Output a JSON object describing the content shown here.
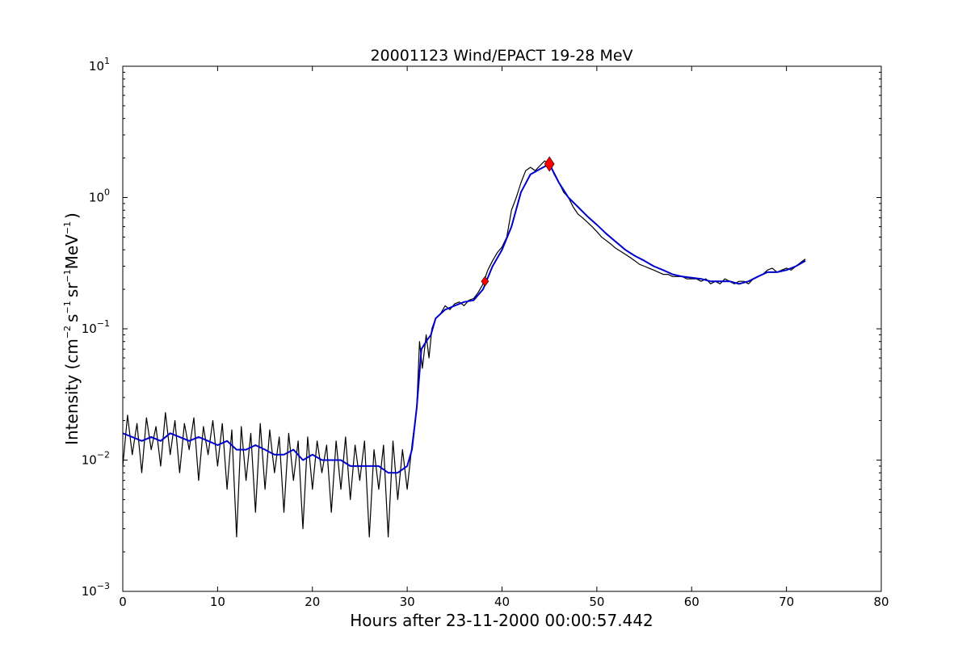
{
  "chart_data": {
    "type": "line",
    "title": "20001123 Wind/EPACT 19-28 MeV",
    "xlabel": "Hours after 23-11-2000 00:00:57.442",
    "ylabel": {
      "prefix": "Intensity (cm",
      "exp1": "−2",
      "part2": "s",
      "exp2": "−1",
      "part3": "sr",
      "exp3": "−1",
      "part4": "MeV",
      "exp4": "−1",
      "suffix": ")"
    },
    "xlim": [
      0,
      80
    ],
    "ylim": [
      0.001,
      10
    ],
    "yscale": "log",
    "grid": false,
    "x_ticks": [
      {
        "value": 0,
        "label": "0"
      },
      {
        "value": 10,
        "label": "10"
      },
      {
        "value": 20,
        "label": "20"
      },
      {
        "value": 30,
        "label": "30"
      },
      {
        "value": 40,
        "label": "40"
      },
      {
        "value": 50,
        "label": "50"
      },
      {
        "value": 60,
        "label": "60"
      },
      {
        "value": 70,
        "label": "70"
      },
      {
        "value": 80,
        "label": "80"
      }
    ],
    "y_ticks": [
      {
        "value": 0.001,
        "base": "10",
        "exp": "−3"
      },
      {
        "value": 0.01,
        "base": "10",
        "exp": "−2"
      },
      {
        "value": 0.1,
        "base": "10",
        "exp": "−1"
      },
      {
        "value": 1,
        "base": "10",
        "exp": "0"
      },
      {
        "value": 10,
        "base": "10",
        "exp": "1"
      }
    ],
    "series": [
      {
        "color": "#000000",
        "x": [
          0.0,
          0.5,
          1.0,
          1.5,
          2.0,
          2.5,
          3.0,
          3.5,
          4.0,
          4.5,
          5.0,
          5.5,
          6.0,
          6.5,
          7.0,
          7.5,
          8.0,
          8.5,
          9.0,
          9.5,
          10.0,
          10.5,
          11.0,
          11.5,
          12.0,
          12.5,
          13.0,
          13.5,
          14.0,
          14.5,
          15.0,
          15.5,
          16.0,
          16.5,
          17.0,
          17.5,
          18.0,
          18.5,
          19.0,
          19.5,
          20.0,
          20.5,
          21.0,
          21.5,
          22.0,
          22.5,
          23.0,
          23.5,
          24.0,
          24.5,
          25.0,
          25.5,
          26.0,
          26.5,
          27.0,
          27.5,
          28.0,
          28.5,
          29.0,
          29.5,
          30.0,
          30.5,
          31.0,
          31.3,
          31.6,
          32.0,
          32.3,
          32.6,
          33.0,
          33.5,
          34.0,
          34.5,
          35.0,
          35.5,
          36.0,
          36.5,
          37.0,
          37.5,
          38.0,
          38.5,
          39.0,
          39.5,
          40.0,
          40.5,
          41.0,
          41.5,
          42.0,
          42.5,
          43.0,
          43.5,
          44.0,
          44.5,
          45.0,
          45.5,
          46.0,
          46.5,
          47.0,
          47.5,
          48.0,
          48.5,
          49.0,
          49.5,
          50.0,
          50.5,
          51.0,
          51.5,
          52.0,
          52.5,
          53.0,
          53.5,
          54.0,
          54.5,
          55.0,
          55.5,
          56.0,
          56.5,
          57.0,
          57.5,
          58.0,
          58.5,
          59.0,
          59.5,
          60.0,
          60.5,
          61.0,
          61.5,
          62.0,
          62.5,
          63.0,
          63.5,
          64.0,
          64.5,
          65.0,
          65.5,
          66.0,
          66.5,
          67.0,
          67.5,
          68.0,
          68.5,
          69.0,
          69.5,
          70.0,
          70.5,
          71.0,
          71.5,
          72.0
        ],
        "y": [
          0.009,
          0.022,
          0.011,
          0.019,
          0.008,
          0.021,
          0.012,
          0.018,
          0.009,
          0.023,
          0.011,
          0.02,
          0.008,
          0.019,
          0.012,
          0.021,
          0.007,
          0.018,
          0.011,
          0.02,
          0.009,
          0.019,
          0.006,
          0.017,
          0.0026,
          0.018,
          0.007,
          0.016,
          0.004,
          0.019,
          0.006,
          0.017,
          0.008,
          0.015,
          0.004,
          0.016,
          0.007,
          0.014,
          0.003,
          0.015,
          0.006,
          0.014,
          0.008,
          0.013,
          0.004,
          0.014,
          0.006,
          0.015,
          0.005,
          0.013,
          0.007,
          0.014,
          0.0026,
          0.012,
          0.006,
          0.013,
          0.0026,
          0.014,
          0.005,
          0.012,
          0.006,
          0.013,
          0.025,
          0.08,
          0.05,
          0.09,
          0.06,
          0.1,
          0.12,
          0.13,
          0.15,
          0.14,
          0.155,
          0.16,
          0.15,
          0.165,
          0.17,
          0.19,
          0.22,
          0.28,
          0.33,
          0.38,
          0.42,
          0.5,
          0.8,
          1.0,
          1.3,
          1.6,
          1.7,
          1.6,
          1.75,
          1.9,
          1.8,
          1.5,
          1.3,
          1.1,
          1.0,
          0.85,
          0.75,
          0.7,
          0.65,
          0.6,
          0.55,
          0.5,
          0.47,
          0.44,
          0.41,
          0.39,
          0.37,
          0.35,
          0.33,
          0.31,
          0.3,
          0.29,
          0.28,
          0.27,
          0.26,
          0.26,
          0.25,
          0.25,
          0.25,
          0.24,
          0.24,
          0.24,
          0.23,
          0.24,
          0.22,
          0.23,
          0.22,
          0.24,
          0.23,
          0.22,
          0.23,
          0.23,
          0.22,
          0.24,
          0.25,
          0.26,
          0.28,
          0.29,
          0.27,
          0.28,
          0.29,
          0.28,
          0.3,
          0.32,
          0.34
        ]
      },
      {
        "color": "#0000cc",
        "x": [
          0,
          1,
          2,
          3,
          4,
          5,
          6,
          7,
          8,
          9,
          10,
          11,
          12,
          13,
          14,
          15,
          16,
          17,
          18,
          19,
          20,
          21,
          22,
          23,
          24,
          25,
          26,
          27,
          28,
          29,
          30,
          30.5,
          31,
          31.5,
          32,
          32.5,
          33,
          34,
          35,
          36,
          37,
          38,
          39,
          40,
          41,
          42,
          43,
          44,
          45,
          46,
          47,
          48,
          49,
          50,
          51,
          52,
          53,
          54,
          55,
          56,
          57,
          58,
          59,
          60,
          61,
          62,
          63,
          64,
          65,
          66,
          67,
          68,
          69,
          70,
          71,
          72
        ],
        "y": [
          0.016,
          0.015,
          0.014,
          0.015,
          0.014,
          0.016,
          0.015,
          0.014,
          0.015,
          0.014,
          0.013,
          0.014,
          0.012,
          0.012,
          0.013,
          0.012,
          0.011,
          0.011,
          0.012,
          0.01,
          0.011,
          0.01,
          0.01,
          0.01,
          0.009,
          0.009,
          0.009,
          0.009,
          0.008,
          0.008,
          0.009,
          0.012,
          0.025,
          0.07,
          0.08,
          0.09,
          0.12,
          0.14,
          0.15,
          0.16,
          0.165,
          0.2,
          0.3,
          0.4,
          0.6,
          1.1,
          1.5,
          1.65,
          1.8,
          1.3,
          1.0,
          0.85,
          0.72,
          0.62,
          0.53,
          0.46,
          0.4,
          0.36,
          0.33,
          0.3,
          0.28,
          0.26,
          0.25,
          0.245,
          0.24,
          0.23,
          0.23,
          0.23,
          0.22,
          0.23,
          0.25,
          0.27,
          0.27,
          0.28,
          0.3,
          0.33
        ]
      }
    ],
    "markers": [
      {
        "x": 38.2,
        "y": 0.23,
        "color": "#ff0000",
        "shape": "diamond",
        "size": "small"
      },
      {
        "x": 45.0,
        "y": 1.8,
        "color": "#ff0000",
        "shape": "diamond",
        "size": "large"
      }
    ]
  }
}
